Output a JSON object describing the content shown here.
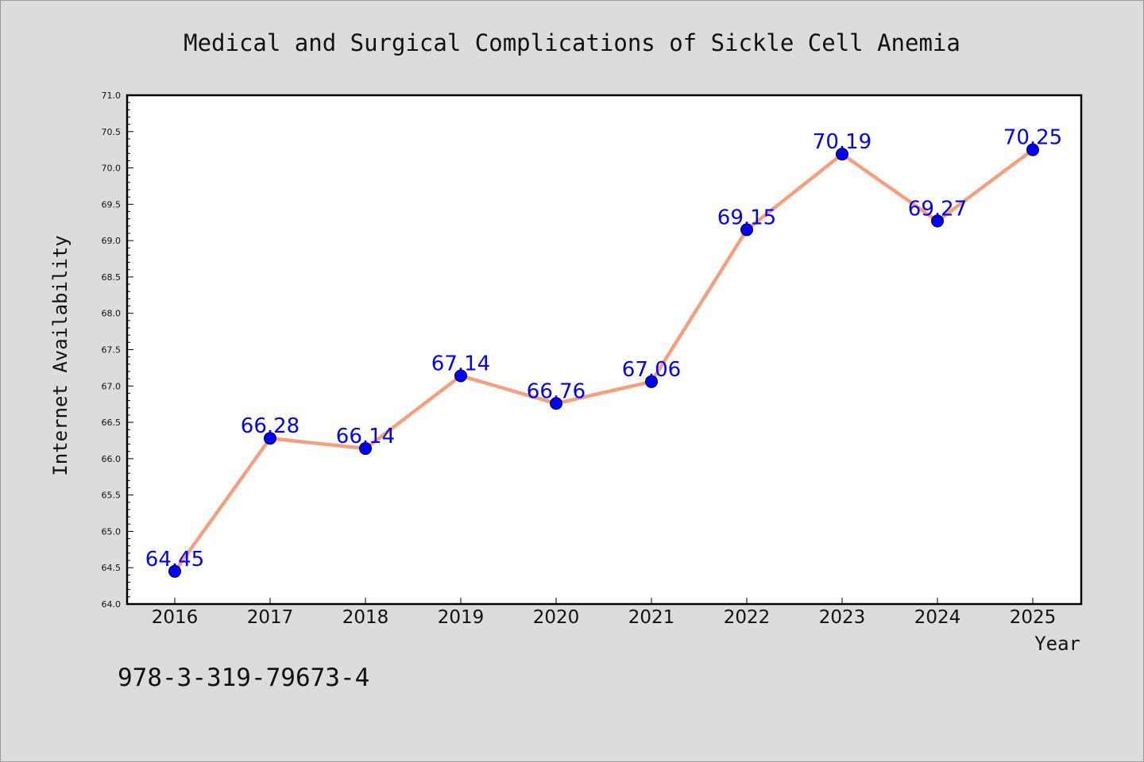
{
  "chart_data": {
    "type": "line",
    "title": "Medical and Surgical Complications of Sickle Cell Anemia",
    "xlabel": "Year",
    "ylabel": "Internet Availability",
    "categories": [
      "2016",
      "2017",
      "2018",
      "2019",
      "2020",
      "2021",
      "2022",
      "2023",
      "2024",
      "2025"
    ],
    "series": [
      {
        "values": [
          64.45,
          66.28,
          66.14,
          67.14,
          66.76,
          67.06,
          69.15,
          70.19,
          69.27,
          70.25
        ],
        "labels": [
          "64.45",
          "66.28",
          "66.14",
          "67.14",
          "66.76",
          "67.06",
          "69.15",
          "70.19",
          "69.27",
          "70.25"
        ]
      }
    ],
    "ylim": [
      64.0,
      71.0
    ],
    "yticks": [
      "64.0",
      "64.5",
      "65.0",
      "65.5",
      "66.0",
      "66.5",
      "67.0",
      "67.5",
      "68.0",
      "68.5",
      "69.0",
      "69.5",
      "70.0",
      "70.5",
      "71.0"
    ],
    "grid": false,
    "legend": "none",
    "colors": {
      "line": "#f4a07e",
      "marker": "#0000ff",
      "label": "#0000ff",
      "plot_background": "#ffffff",
      "figure_background": "#dcdcdc"
    }
  },
  "footer_text": "978-3-319-79673-4"
}
